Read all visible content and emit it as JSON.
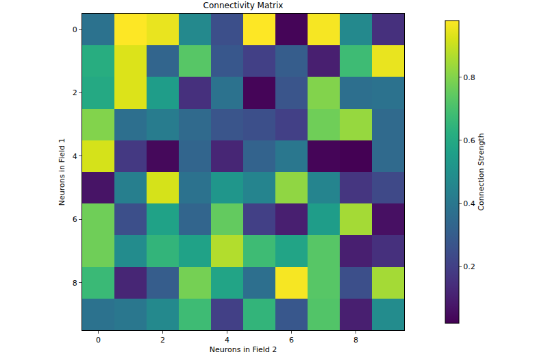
{
  "chart_data": {
    "type": "heatmap",
    "title": "Connectivity Matrix",
    "xlabel": "Neurons in Field 2",
    "ylabel": "Neurons in Field 1",
    "x": [
      0,
      1,
      2,
      3,
      4,
      5,
      6,
      7,
      8,
      9
    ],
    "y": [
      0,
      1,
      2,
      3,
      4,
      5,
      6,
      7,
      8,
      9
    ],
    "values": [
      [
        0.38,
        0.98,
        0.95,
        0.47,
        0.25,
        0.98,
        0.03,
        0.97,
        0.47,
        0.15
      ],
      [
        0.62,
        0.93,
        0.33,
        0.73,
        0.28,
        0.2,
        0.3,
        0.1,
        0.68,
        0.95
      ],
      [
        0.6,
        0.93,
        0.55,
        0.15,
        0.38,
        0.03,
        0.27,
        0.8,
        0.37,
        0.38
      ],
      [
        0.8,
        0.37,
        0.42,
        0.35,
        0.27,
        0.25,
        0.2,
        0.77,
        0.83,
        0.35
      ],
      [
        0.92,
        0.18,
        0.04,
        0.33,
        0.12,
        0.32,
        0.4,
        0.03,
        0.02,
        0.35
      ],
      [
        0.07,
        0.43,
        0.92,
        0.38,
        0.52,
        0.45,
        0.82,
        0.45,
        0.17,
        0.23
      ],
      [
        0.77,
        0.25,
        0.57,
        0.33,
        0.75,
        0.2,
        0.1,
        0.55,
        0.85,
        0.06
      ],
      [
        0.77,
        0.48,
        0.65,
        0.57,
        0.87,
        0.68,
        0.58,
        0.73,
        0.1,
        0.15
      ],
      [
        0.67,
        0.12,
        0.3,
        0.78,
        0.58,
        0.37,
        0.97,
        0.73,
        0.25,
        0.85
      ],
      [
        0.38,
        0.4,
        0.47,
        0.68,
        0.2,
        0.65,
        0.28,
        0.72,
        0.1,
        0.48
      ]
    ],
    "xlim": [
      -0.5,
      9.5
    ],
    "xticks": [
      0,
      2,
      4,
      6,
      8
    ],
    "ylim": [
      9.5,
      -0.5
    ],
    "yticks": [
      0,
      2,
      4,
      6,
      8
    ],
    "color": "Viridis",
    "colorbar": {
      "title": "Connection Strength",
      "range": [
        0.02,
        0.98
      ],
      "ticks": [
        0.2,
        0.4,
        0.6,
        0.8
      ]
    }
  }
}
